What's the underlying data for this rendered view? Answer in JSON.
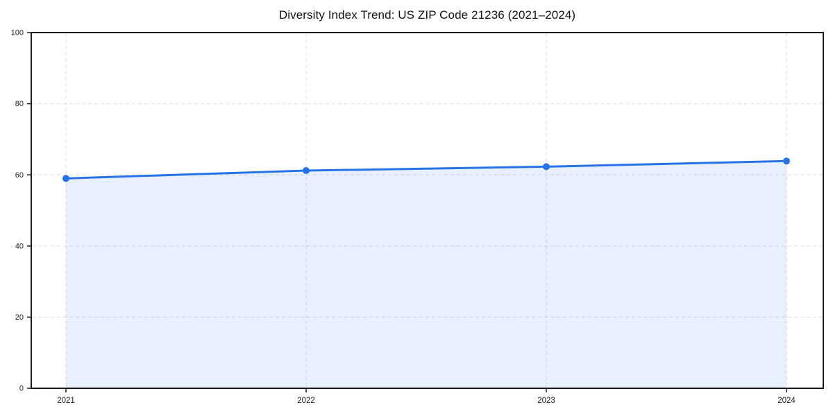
{
  "chart_data": {
    "type": "area",
    "title": "Diversity Index Trend: US ZIP Code 21236 (2021–2024)",
    "categories": [
      "2021",
      "2022",
      "2023",
      "2024"
    ],
    "values": [
      59,
      61.2,
      62.3,
      63.9
    ],
    "xlabel": "",
    "ylabel": "",
    "ylim": [
      0,
      100
    ],
    "yticks": [
      0,
      20,
      40,
      60,
      80,
      100
    ],
    "grid": true,
    "grid_style": "dashed",
    "legend": false,
    "marker": "circle",
    "colors": {
      "line": "#2673e8",
      "marker": "#2673e8",
      "fill": "#2673e8",
      "fill_opacity": 0.11,
      "grid": "#dedede",
      "axis": "#1a1a1a",
      "tick_text": "#1a1a1a",
      "title_text": "#111111",
      "background": "#ffffff"
    }
  }
}
